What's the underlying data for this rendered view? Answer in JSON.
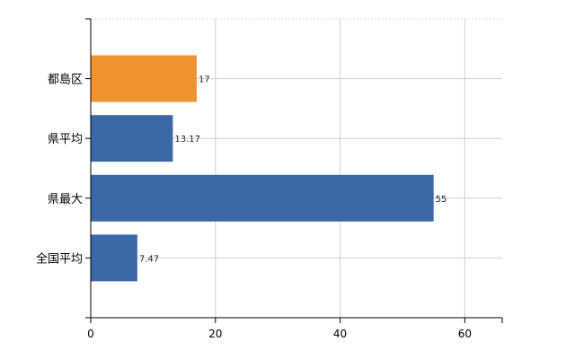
{
  "chart_data": {
    "type": "bar",
    "orientation": "horizontal",
    "categories": [
      "都島区",
      "県平均",
      "県最大",
      "全国平均"
    ],
    "values": [
      17,
      13.17,
      55,
      7.47
    ],
    "value_labels": [
      "17",
      "13.17",
      "55",
      "7.47"
    ],
    "bar_colors": [
      "#f0922f",
      "#3b69a8",
      "#3b69a8",
      "#3b69a8"
    ],
    "xlim": [
      0,
      66
    ],
    "xticks": [
      0,
      20,
      40,
      60
    ],
    "grid": true
  }
}
